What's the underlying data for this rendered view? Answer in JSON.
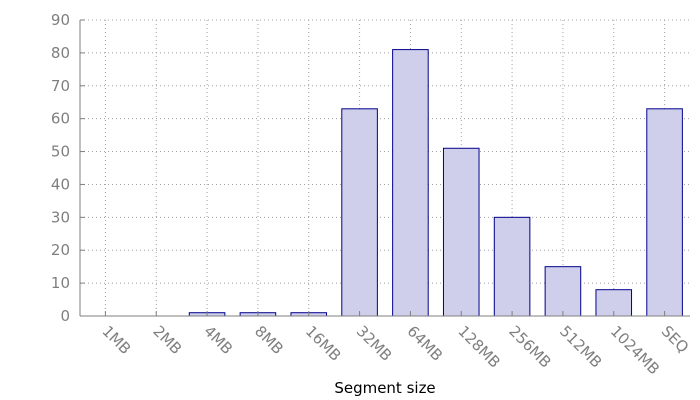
{
  "chart_data": {
    "type": "bar",
    "title": "",
    "xlabel": "Segment size",
    "ylabel": "",
    "categories": [
      "1MB",
      "2MB",
      "4MB",
      "8MB",
      "16MB",
      "32MB",
      "64MB",
      "128MB",
      "256MB",
      "512MB",
      "1024MB",
      "SEQ"
    ],
    "values": [
      0,
      0,
      1,
      1,
      1,
      63,
      81,
      51,
      30,
      15,
      8,
      63
    ],
    "ylim": [
      0,
      90
    ],
    "yticks": [
      0,
      10,
      20,
      30,
      40,
      50,
      60,
      70,
      80,
      90
    ],
    "grid": true,
    "legend": "none",
    "colors": {
      "bar_fill": "#cfcfec",
      "bar_stroke": "#00008b",
      "axis": "#7f7f7f",
      "grid": "#a0a0a0",
      "tick_text": "#7f7f7f",
      "label_text": "#000000"
    }
  }
}
